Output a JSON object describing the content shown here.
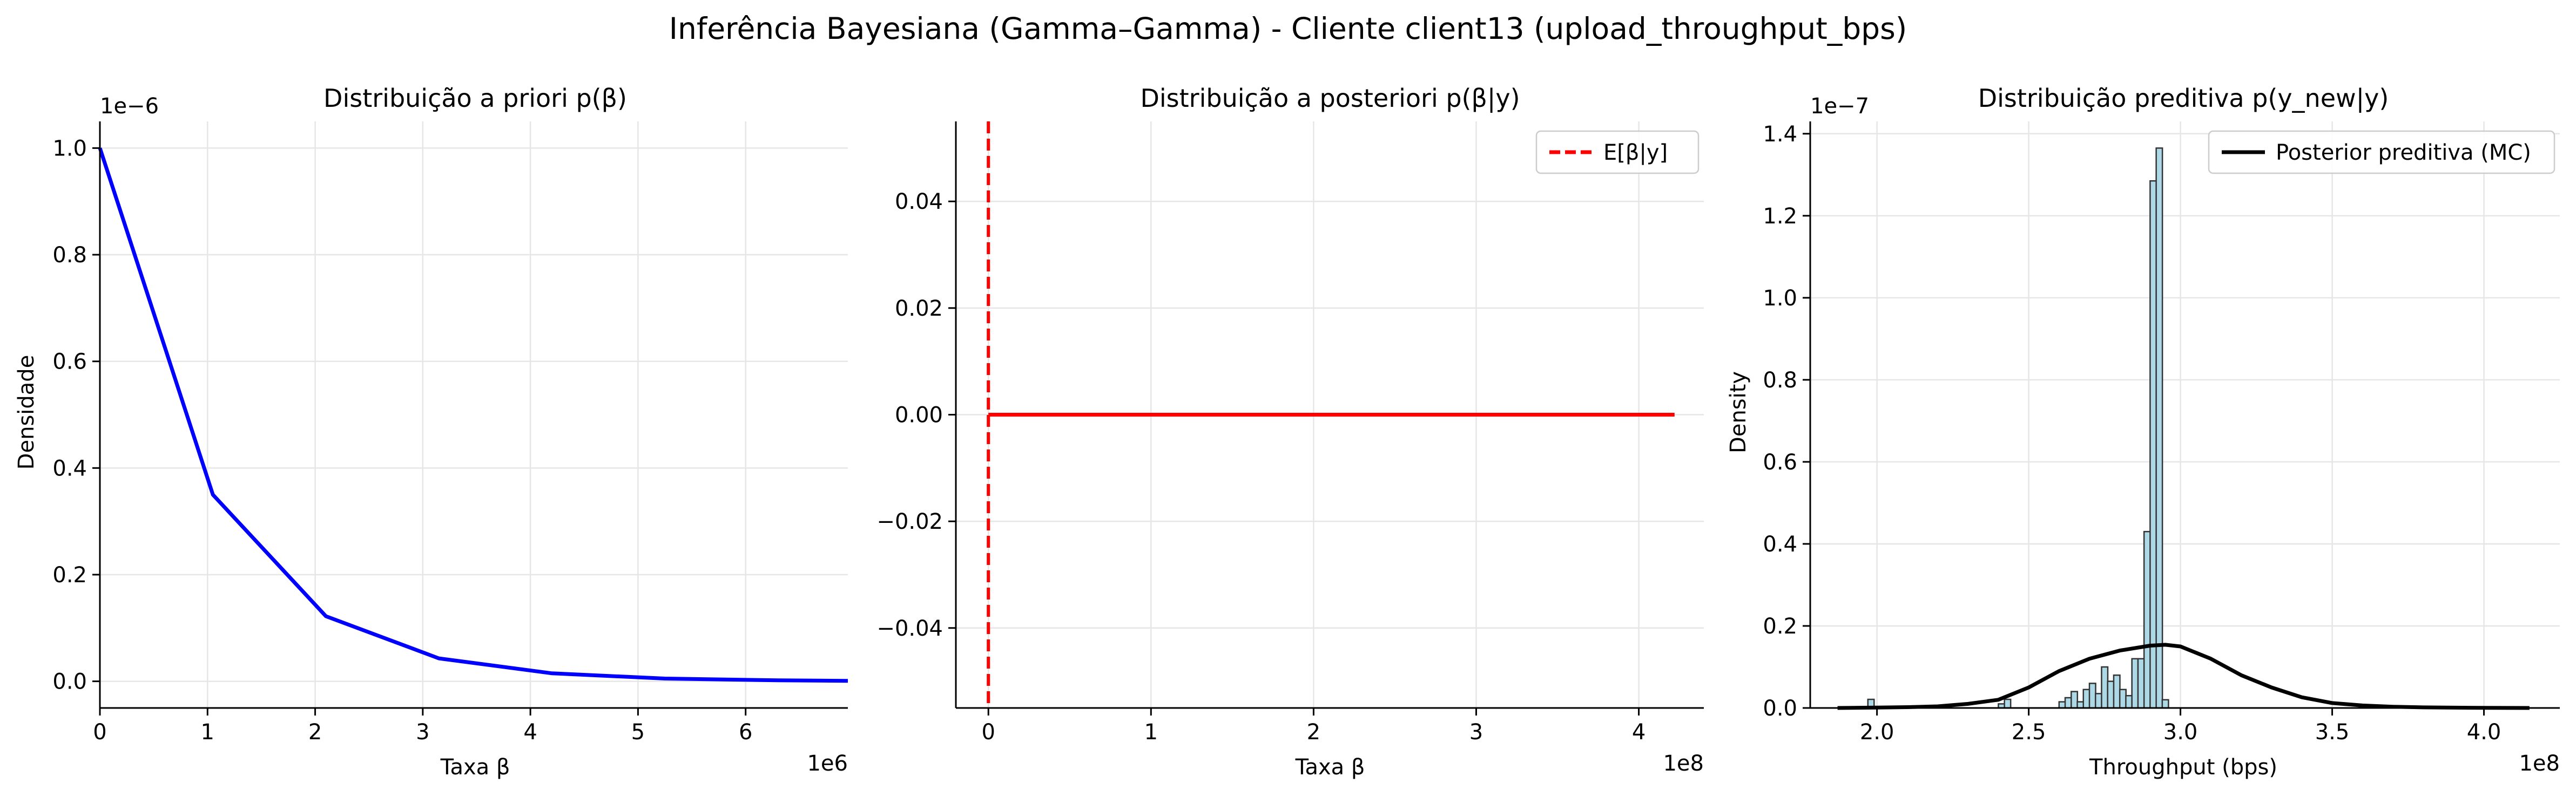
{
  "suptitle": "Inferência Bayesiana (Gamma–Gamma) - Cliente client13 (upload_throughput_bps)",
  "chart_data": [
    {
      "type": "line",
      "title": "Distribuição a priori p(β)",
      "xlabel": "Taxa β",
      "ylabel": "Densidade",
      "x_offset_text": "1e6",
      "y_offset_text": "1e−6",
      "xlim": [
        0,
        6.95
      ],
      "ylim": [
        -0.05,
        1.05
      ],
      "x_ticks": [
        0,
        1,
        2,
        3,
        4,
        5,
        6
      ],
      "x_tick_labels": [
        "0",
        "1",
        "2",
        "3",
        "4",
        "5",
        "6"
      ],
      "y_ticks": [
        0,
        0.2,
        0.4,
        0.6,
        0.8,
        1.0
      ],
      "y_tick_labels": [
        "0.0",
        "0.2",
        "0.4",
        "0.6",
        "0.8",
        "1.0"
      ],
      "grid": true,
      "series": [
        {
          "color": "#0000ff",
          "x": [
            0,
            1.05,
            2.1,
            3.15,
            4.2,
            5.25,
            6.3,
            6.95
          ],
          "y": [
            1.0,
            0.35,
            0.122,
            0.043,
            0.015,
            0.0052,
            0.0018,
            0.0009
          ]
        }
      ]
    },
    {
      "type": "line",
      "title": "Distribuição a posteriori p(β|y)",
      "xlabel": "Taxa β",
      "ylabel": "",
      "x_offset_text": "1e8",
      "xlim": [
        -0.2,
        4.4
      ],
      "ylim": [
        -0.055,
        0.055
      ],
      "x_ticks": [
        0,
        1,
        2,
        3,
        4
      ],
      "x_tick_labels": [
        "0",
        "1",
        "2",
        "3",
        "4"
      ],
      "y_ticks": [
        -0.04,
        -0.02,
        0,
        0.02,
        0.04
      ],
      "y_tick_labels": [
        "−0.04",
        "−0.02",
        "0.00",
        "0.02",
        "0.04"
      ],
      "grid": true,
      "legend": {
        "placement": "top-right",
        "entries": [
          {
            "label": "E[β|y]",
            "color": "#ff0000",
            "style": "dashed"
          }
        ]
      },
      "series": [
        {
          "color": "#ff0000",
          "x": [
            0,
            4.22
          ],
          "y": [
            0,
            0
          ]
        }
      ],
      "vline": {
        "x": 0,
        "color": "#ff0000",
        "style": "dashed"
      }
    },
    {
      "type": "histogram+line",
      "title": "Distribuição preditiva p(y_new|y)",
      "xlabel": "Throughput (bps)",
      "ylabel": "Density",
      "x_offset_text": "1e8",
      "y_offset_text": "1e−7",
      "xlim": [
        1.78,
        4.25
      ],
      "ylim": [
        0,
        1.43
      ],
      "x_ticks": [
        2.0,
        2.5,
        3.0,
        3.5,
        4.0
      ],
      "x_tick_labels": [
        "2.0",
        "2.5",
        "3.0",
        "3.5",
        "4.0"
      ],
      "y_ticks": [
        0,
        0.2,
        0.4,
        0.6,
        0.8,
        1.0,
        1.2,
        1.4
      ],
      "y_tick_labels": [
        "0.0",
        "0.2",
        "0.4",
        "0.6",
        "0.8",
        "1.0",
        "1.2",
        "1.4"
      ],
      "grid": true,
      "legend": {
        "placement": "top-right",
        "entries": [
          {
            "label": "Posterior preditiva (MC)",
            "color": "#000000",
            "style": "solid"
          }
        ]
      },
      "histogram": {
        "fill": "#add8e6",
        "edge": "#333333",
        "bin_width": 0.0205,
        "bins": [
          [
            1.97,
            0.021
          ],
          [
            2.4,
            0.01
          ],
          [
            2.42,
            0.021
          ],
          [
            2.6,
            0.015
          ],
          [
            2.62,
            0.025
          ],
          [
            2.64,
            0.04
          ],
          [
            2.66,
            0.015
          ],
          [
            2.68,
            0.045
          ],
          [
            2.7,
            0.06
          ],
          [
            2.72,
            0.035
          ],
          [
            2.74,
            0.1
          ],
          [
            2.76,
            0.065
          ],
          [
            2.78,
            0.08
          ],
          [
            2.8,
            0.045
          ],
          [
            2.82,
            0.03
          ],
          [
            2.84,
            0.12
          ],
          [
            2.86,
            0.12
          ],
          [
            2.88,
            0.43
          ],
          [
            2.9,
            1.285
          ],
          [
            2.92,
            1.365
          ],
          [
            2.94,
            0.02
          ]
        ]
      },
      "series": [
        {
          "name": "Posterior preditiva (MC)",
          "color": "#000000",
          "x": [
            1.87,
            2.0,
            2.1,
            2.2,
            2.3,
            2.4,
            2.5,
            2.6,
            2.7,
            2.8,
            2.9,
            2.95,
            3.0,
            3.1,
            3.2,
            3.3,
            3.4,
            3.5,
            3.6,
            3.7,
            3.8,
            3.9,
            4.0,
            4.15
          ],
          "y": [
            0,
            0.001,
            0.002,
            0.004,
            0.01,
            0.02,
            0.05,
            0.09,
            0.12,
            0.14,
            0.152,
            0.154,
            0.15,
            0.12,
            0.08,
            0.05,
            0.026,
            0.012,
            0.006,
            0.003,
            0.0015,
            0.0008,
            0.0003,
            0
          ]
        }
      ]
    }
  ]
}
